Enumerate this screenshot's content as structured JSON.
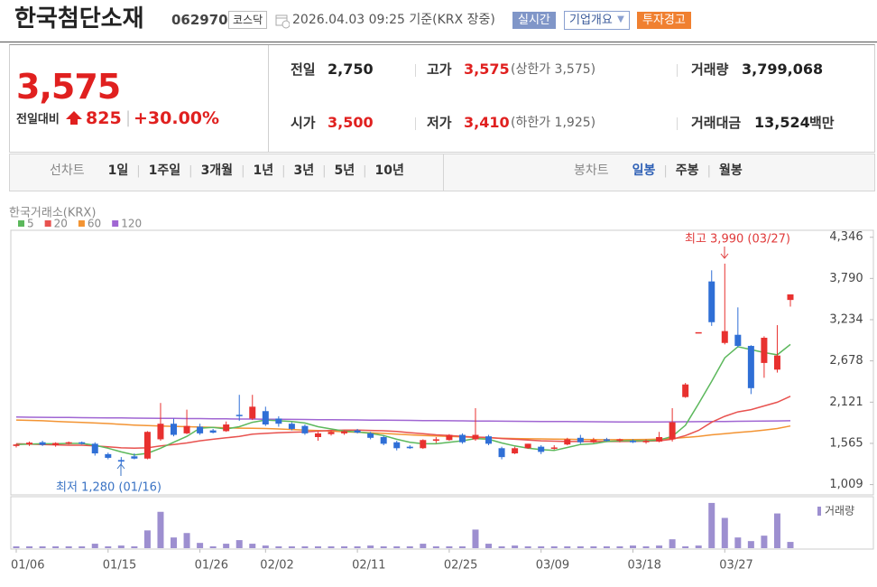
{
  "header": {
    "title": "한국첨단소재",
    "code": "062970",
    "market": "코스닥",
    "timestamp": "2026.04.03 09:25 기준(KRX 장중)",
    "buttons": [
      "실시간",
      "기업개요",
      "투자경고"
    ]
  },
  "quote": {
    "price": "3,575",
    "change_label": "전일대비",
    "change": "825",
    "change_rate": "+30.00%",
    "items": [
      {
        "label": "전일",
        "value": "2,750"
      },
      {
        "label": "고가",
        "value": "3,575",
        "note": "(상한가 3,575)"
      },
      {
        "label": "거래량",
        "value": "3,799,068"
      },
      {
        "label": "시가",
        "value": "3,500"
      },
      {
        "label": "저가",
        "value": "3,410",
        "note": "(하한가 1,925)"
      },
      {
        "label": "거래대금",
        "value": "13,524",
        "unit": "백만"
      }
    ]
  },
  "tabs": {
    "line_label": "선차트",
    "line_periods": [
      "1일",
      "1주일",
      "3개월",
      "1년",
      "3년",
      "5년",
      "10년"
    ],
    "candle_label": "봉차트",
    "candle_periods": [
      "일봉",
      "주봉",
      "월봉"
    ]
  },
  "chart_data": {
    "type": "candlestick",
    "source": "한국거래소(KRX)",
    "annotations": [
      "최고 3,990 (03/27)",
      "최저 1,280 (01/16)"
    ],
    "up_color": "#e8312f",
    "down_color": "#2f6fd6",
    "ylim": [
      870,
      4440
    ],
    "yticks": [
      {
        "value": 4346,
        "label": "4,346"
      },
      {
        "value": 3790,
        "label": "3,790"
      },
      {
        "value": 3234,
        "label": "3,234"
      },
      {
        "value": 2678,
        "label": "2,678"
      },
      {
        "value": 2121,
        "label": "2,121"
      },
      {
        "value": 1565,
        "label": "1,565"
      },
      {
        "value": 1009,
        "label": "1,009"
      }
    ],
    "categories": [
      "01/06",
      null,
      null,
      null,
      null,
      null,
      null,
      "01/15",
      null,
      null,
      null,
      null,
      null,
      null,
      "01/26",
      null,
      null,
      null,
      null,
      "02/02",
      null,
      null,
      null,
      null,
      null,
      null,
      "02/11",
      null,
      null,
      null,
      null,
      null,
      null,
      "02/25",
      null,
      null,
      null,
      null,
      null,
      null,
      "03/09",
      null,
      null,
      null,
      null,
      null,
      null,
      "03/18",
      null,
      null,
      null,
      null,
      null,
      null,
      "03/27",
      null,
      null,
      null,
      null,
      null
    ],
    "open": [
      1530,
      1550,
      1580,
      1540,
      1570,
      1580,
      1560,
      1420,
      1340,
      1390,
      1360,
      1620,
      1830,
      1700,
      1790,
      1740,
      1730,
      1950,
      1900,
      2000,
      1900,
      1830,
      1800,
      1650,
      1690,
      1700,
      1740,
      1700,
      1650,
      1580,
      1520,
      1500,
      1600,
      1610,
      1680,
      1620,
      1660,
      1500,
      1430,
      1500,
      1520,
      1500,
      1550,
      1640,
      1580,
      1620,
      1600,
      1600,
      1580,
      1590,
      1620,
      2190,
      3065,
      3750,
      2920,
      3030,
      2880,
      2650,
      2560,
      3500
    ],
    "high": [
      1560,
      1590,
      1600,
      1580,
      1590,
      1590,
      1580,
      1440,
      1380,
      1430,
      1730,
      2110,
      1900,
      2020,
      1830,
      1760,
      1860,
      2220,
      2220,
      2060,
      1930,
      1850,
      1820,
      1720,
      1740,
      1740,
      1760,
      1720,
      1670,
      1600,
      1540,
      1620,
      1650,
      1690,
      1700,
      2040,
      1680,
      1520,
      1520,
      1560,
      1540,
      1540,
      1640,
      1680,
      1640,
      1640,
      1630,
      1620,
      1620,
      1720,
      2040,
      2380,
      3065,
      3900,
      3990,
      3400,
      2890,
      3010,
      3160,
      3575
    ],
    "low": [
      1510,
      1530,
      1530,
      1520,
      1550,
      1550,
      1400,
      1350,
      1280,
      1350,
      1350,
      1600,
      1660,
      1690,
      1680,
      1700,
      1720,
      1870,
      1880,
      1800,
      1790,
      1740,
      1680,
      1600,
      1670,
      1680,
      1700,
      1620,
      1540,
      1470,
      1490,
      1490,
      1570,
      1600,
      1560,
      1600,
      1540,
      1350,
      1420,
      1490,
      1420,
      1480,
      1540,
      1560,
      1570,
      1590,
      1580,
      1570,
      1560,
      1580,
      1590,
      2180,
      3065,
      3150,
      2900,
      2860,
      2230,
      2450,
      2520,
      3410
    ],
    "close": [
      1550,
      1575,
      1545,
      1570,
      1580,
      1560,
      1430,
      1370,
      1320,
      1360,
      1720,
      1830,
      1680,
      1800,
      1700,
      1710,
      1820,
      1940,
      2060,
      1820,
      1830,
      1760,
      1700,
      1700,
      1720,
      1730,
      1710,
      1640,
      1560,
      1500,
      1500,
      1610,
      1620,
      1680,
      1580,
      1680,
      1560,
      1380,
      1500,
      1560,
      1450,
      1510,
      1620,
      1580,
      1610,
      1600,
      1620,
      1580,
      1600,
      1650,
      1850,
      2360,
      3065,
      3200,
      3080,
      2880,
      2310,
      2990,
      2750,
      3575
    ],
    "ma": [
      {
        "name": "5",
        "color": "#5cb85c",
        "values": [
          1550,
          1555,
          1560,
          1560,
          1565,
          1565,
          1540,
          1500,
          1450,
          1410,
          1430,
          1500,
          1580,
          1660,
          1770,
          1780,
          1760,
          1790,
          1850,
          1880,
          1870,
          1860,
          1840,
          1790,
          1760,
          1730,
          1720,
          1700,
          1670,
          1620,
          1580,
          1560,
          1560,
          1580,
          1600,
          1630,
          1620,
          1570,
          1530,
          1500,
          1480,
          1470,
          1510,
          1550,
          1560,
          1590,
          1600,
          1600,
          1600,
          1610,
          1660,
          1810,
          2100,
          2400,
          2720,
          2870,
          2830,
          2790,
          2760,
          2900
        ]
      },
      {
        "name": "20",
        "color": "#e8524f",
        "values": [
          1560,
          1555,
          1550,
          1545,
          1540,
          1540,
          1530,
          1520,
          1505,
          1500,
          1505,
          1530,
          1550,
          1570,
          1600,
          1620,
          1640,
          1660,
          1690,
          1700,
          1710,
          1715,
          1720,
          1730,
          1740,
          1745,
          1745,
          1740,
          1735,
          1725,
          1710,
          1695,
          1680,
          1670,
          1660,
          1650,
          1645,
          1630,
          1620,
          1610,
          1600,
          1595,
          1590,
          1590,
          1590,
          1590,
          1590,
          1592,
          1595,
          1600,
          1620,
          1670,
          1740,
          1850,
          1930,
          1990,
          2020,
          2070,
          2120,
          2200
        ]
      },
      {
        "name": "60",
        "color": "#f39433",
        "values": [
          1880,
          1875,
          1870,
          1862,
          1855,
          1848,
          1840,
          1832,
          1822,
          1812,
          1805,
          1800,
          1795,
          1790,
          1785,
          1780,
          1775,
          1770,
          1768,
          1765,
          1760,
          1752,
          1745,
          1738,
          1730,
          1722,
          1715,
          1708,
          1700,
          1690,
          1680,
          1672,
          1665,
          1658,
          1652,
          1645,
          1640,
          1635,
          1630,
          1627,
          1625,
          1622,
          1620,
          1618,
          1616,
          1615,
          1615,
          1616,
          1618,
          1622,
          1630,
          1645,
          1660,
          1680,
          1695,
          1712,
          1725,
          1745,
          1765,
          1800
        ]
      },
      {
        "name": "120",
        "color": "#a066d3",
        "values": [
          1920,
          1918,
          1917,
          1915,
          1914,
          1912,
          1911,
          1909,
          1908,
          1906,
          1905,
          1903,
          1902,
          1900,
          1899,
          1897,
          1896,
          1894,
          1893,
          1891,
          1890,
          1888,
          1887,
          1885,
          1884,
          1882,
          1881,
          1879,
          1878,
          1876,
          1875,
          1873,
          1872,
          1870,
          1869,
          1867,
          1866,
          1864,
          1863,
          1862,
          1861,
          1860,
          1859,
          1858,
          1857,
          1856,
          1855,
          1855,
          1855,
          1855,
          1856,
          1857,
          1858,
          1860,
          1861,
          1863,
          1864,
          1866,
          1868,
          1870
        ]
      }
    ],
    "volume": {
      "name": "거래량",
      "color": "#9d8fd0",
      "ylim": [
        0,
        28000000
      ],
      "values": [
        1100000,
        1100000,
        1100000,
        1100000,
        1100000,
        1100000,
        2700000,
        1100000,
        1600000,
        1100000,
        10800000,
        22100000,
        6500000,
        9200000,
        3200000,
        1100000,
        2700000,
        4900000,
        2700000,
        1600000,
        1100000,
        1100000,
        1100000,
        1100000,
        1100000,
        1100000,
        1100000,
        1600000,
        1100000,
        1100000,
        1100000,
        2700000,
        1100000,
        1100000,
        1100000,
        11300000,
        2700000,
        1100000,
        1600000,
        1100000,
        1100000,
        1100000,
        1100000,
        1100000,
        1100000,
        1100000,
        1100000,
        1600000,
        1100000,
        1600000,
        5400000,
        1100000,
        1600000,
        27500000,
        18400000,
        6500000,
        4300000,
        7600000,
        21100000,
        3799068
      ]
    }
  }
}
